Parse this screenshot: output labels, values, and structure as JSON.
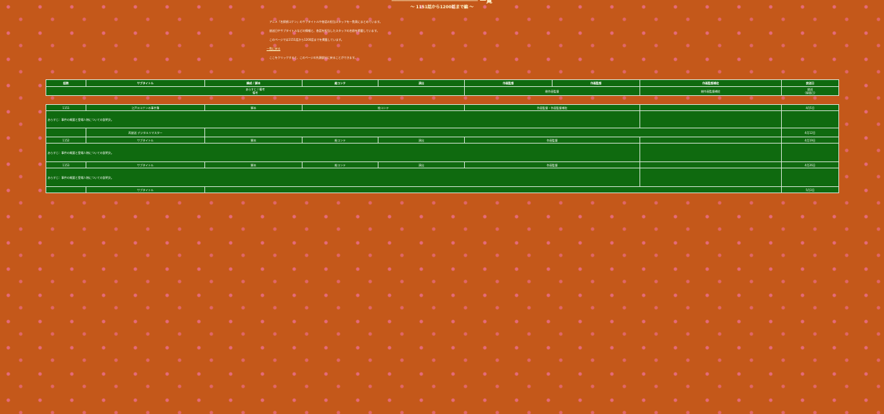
{
  "title": {
    "main": "─────────────────────── 一覧",
    "sub": "〜 1151話から1200話まで編 〜"
  },
  "intro": {
    "paragraphs": [
      "　アニメ『名探偵コナン』のサブタイトルや各話の担当スタッフを一覧表にまとめています。",
      "　放送日やサブタイトルなどの情報と、各話を担当したスタッフの名前を掲載しています。",
      "　このページでは1151話から1200話までを掲載しています。"
    ],
    "link_text": "一覧に戻る",
    "note": "　ここをクリックすると、このページの先頭部分に戻ることができます。"
  },
  "header": {
    "columns": [
      "話数",
      "サブタイトル",
      "構成 / 脚本",
      "絵コンテ",
      "演出",
      "作画監督",
      "作画監督",
      "作画監督補佐",
      "放送日"
    ],
    "sub_row": [
      "",
      "あらすじ / 備考",
      "",
      "",
      "",
      "",
      "総作画監督",
      "総作画監督補佐",
      "放送"
    ],
    "sub_row2": [
      "",
      "備考",
      "",
      "",
      "",
      "",
      "",
      "",
      "（録画日）"
    ]
  },
  "rows": [
    {
      "num": "1151",
      "title": "江戸川コナンの事件簿",
      "script": "脚本",
      "board": "絵コンテ",
      "direct": "演出",
      "anim": "",
      "anim2": "作画監督・作画監督補佐",
      "anim3": "",
      "date": "4月5日"
    },
    {
      "num": "",
      "title": "",
      "script": "",
      "board": "",
      "direct": "",
      "anim": "",
      "anim2": "",
      "anim3": "",
      "date": ""
    },
    {
      "num": "",
      "title": "再放送 デジタルリマスター",
      "script": "",
      "board": "",
      "direct": "",
      "anim": "",
      "anim2": "",
      "anim3": "",
      "date": "4月12日"
    },
    {
      "num": "1152",
      "title": "サブタイトル",
      "script": "脚本",
      "board": "絵コンテ",
      "direct": "演出",
      "anim": "作画監督",
      "anim2": "",
      "anim3": "",
      "date": "4月19日"
    },
    {
      "num": "",
      "title": "",
      "script": "",
      "board": "",
      "direct": "",
      "anim": "",
      "anim2": "",
      "anim3": "",
      "date": ""
    },
    {
      "num": "1153",
      "title": "サブタイトル",
      "script": "脚本",
      "board": "絵コンテ",
      "direct": "演出",
      "anim": "作画監督",
      "anim2": "",
      "anim3": "",
      "date": "4月26日"
    },
    {
      "num": "",
      "title": "",
      "script": "",
      "board": "",
      "direct": "",
      "anim": "",
      "anim2": "",
      "anim3": "",
      "date": ""
    },
    {
      "num": "",
      "title": "サブタイトル",
      "script": "",
      "board": "",
      "direct": "",
      "anim": "",
      "anim2": "",
      "anim3": "",
      "date": "5月3日"
    }
  ],
  "note_rows": [
    "あらすじ：事件の概要と登場人物についての説明文。",
    "あらすじ：事件の概要と登場人物についての説明文。",
    "あらすじ：事件の概要と登場人物についての説明文。"
  ]
}
